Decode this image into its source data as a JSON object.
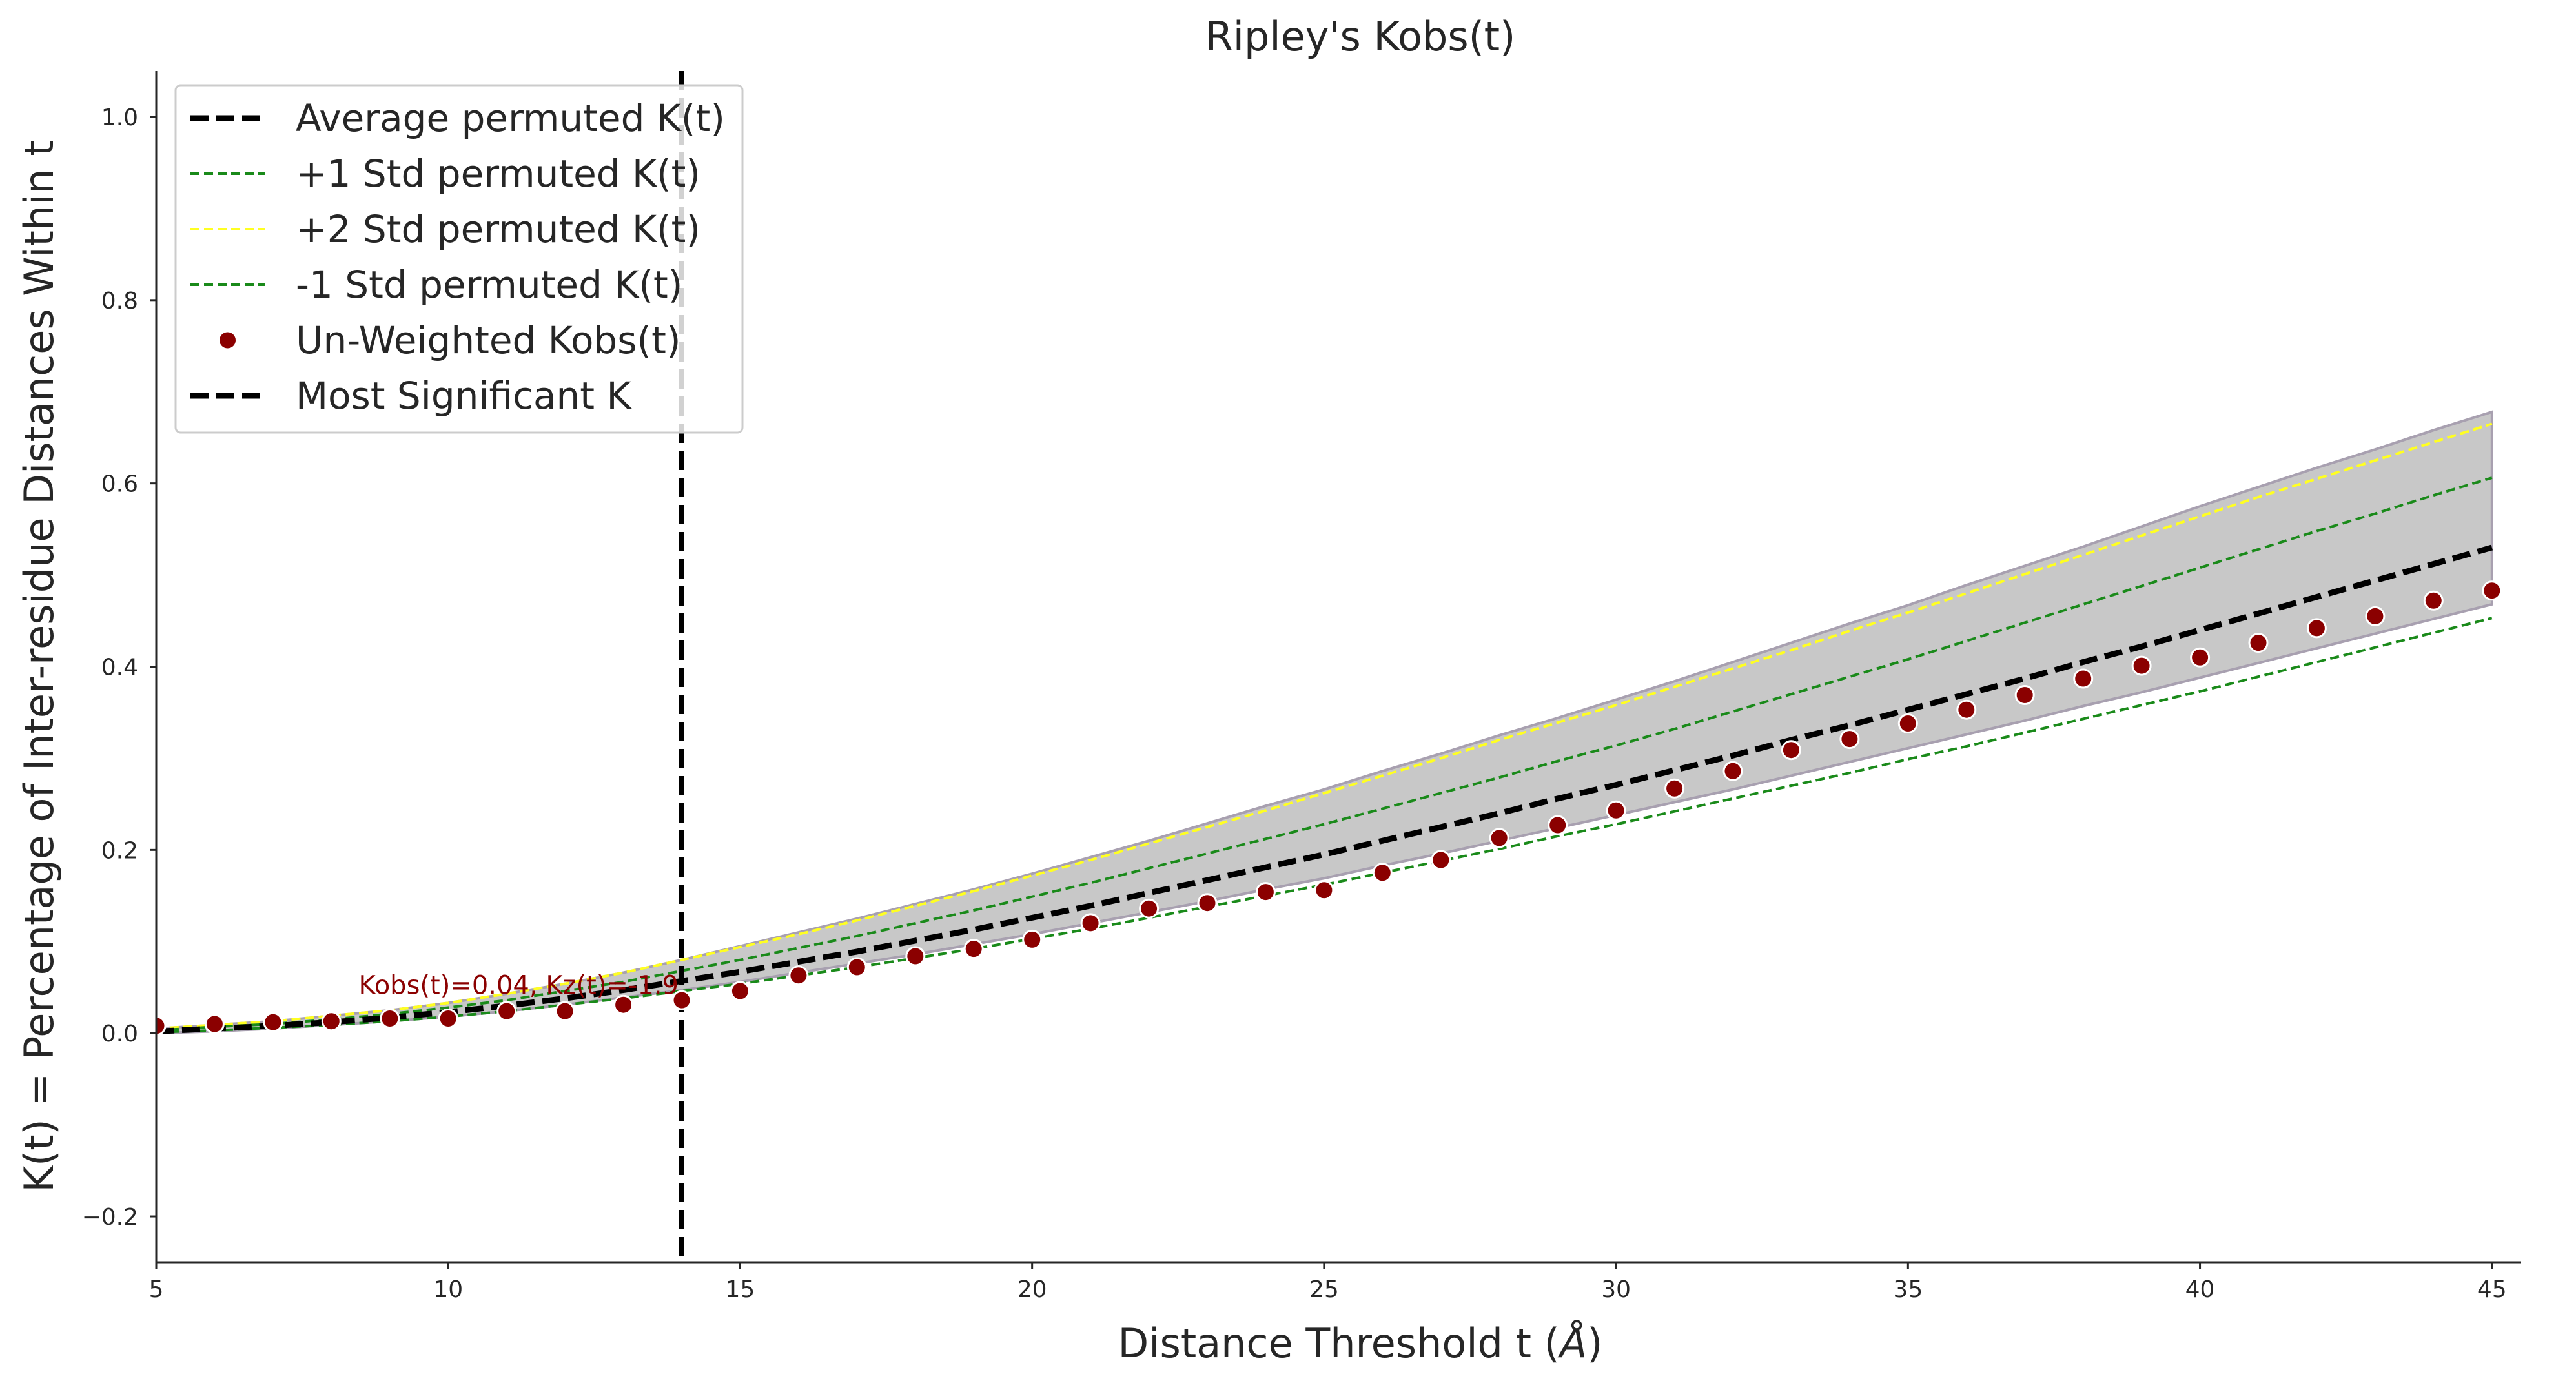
{
  "chart_data": {
    "type": "line",
    "title": "Ripley's Kobs(t)",
    "xlabel": "Distance Threshold t (",
    "xlabel_symbol": "Å",
    "xlabel_end": ")",
    "ylabel": "K(t) = Percentage of Inter-residue Distances Within t",
    "xlim": [
      5,
      45.5
    ],
    "ylim": [
      -0.25,
      1.05
    ],
    "xticks": [
      5,
      10,
      15,
      20,
      25,
      30,
      35,
      40,
      45
    ],
    "yticks": [
      -0.2,
      0.0,
      0.2,
      0.4,
      0.6,
      0.8,
      1.0
    ],
    "xtick_labels": [
      "5",
      "10",
      "15",
      "20",
      "25",
      "30",
      "35",
      "40",
      "45"
    ],
    "ytick_labels": [
      "−0.2",
      "0.0",
      "0.2",
      "0.4",
      "0.6",
      "0.8",
      "1.0"
    ],
    "grid": false,
    "legend_position": "upper-left",
    "x": [
      5,
      6,
      7,
      8,
      9,
      10,
      11,
      12,
      13,
      14,
      15,
      16,
      17,
      18,
      19,
      20,
      21,
      22,
      23,
      24,
      25,
      26,
      27,
      28,
      29,
      30,
      31,
      32,
      33,
      34,
      35,
      36,
      37,
      38,
      39,
      40,
      41,
      42,
      43,
      44,
      45
    ],
    "band": {
      "upper": [
        0.005,
        0.009,
        0.013,
        0.019,
        0.025,
        0.033,
        0.043,
        0.054,
        0.066,
        0.08,
        0.095,
        0.11,
        0.125,
        0.141,
        0.157,
        0.174,
        0.192,
        0.21,
        0.229,
        0.248,
        0.266,
        0.286,
        0.305,
        0.325,
        0.344,
        0.364,
        0.384,
        0.405,
        0.426,
        0.447,
        0.467,
        0.489,
        0.51,
        0.531,
        0.553,
        0.575,
        0.596,
        0.617,
        0.637,
        0.658,
        0.678
      ],
      "lower": [
        0.0,
        0.002,
        0.005,
        0.009,
        0.013,
        0.018,
        0.024,
        0.031,
        0.039,
        0.047,
        0.056,
        0.066,
        0.076,
        0.086,
        0.097,
        0.108,
        0.12,
        0.132,
        0.144,
        0.157,
        0.169,
        0.183,
        0.196,
        0.21,
        0.224,
        0.238,
        0.252,
        0.266,
        0.281,
        0.296,
        0.311,
        0.326,
        0.341,
        0.357,
        0.372,
        0.388,
        0.404,
        0.42,
        0.436,
        0.452,
        0.468
      ]
    },
    "series": [
      {
        "name": "Average permuted K(t)",
        "color": "#000000",
        "style": "dashed-thick",
        "values": [
          0.002,
          0.005,
          0.008,
          0.012,
          0.017,
          0.023,
          0.03,
          0.038,
          0.047,
          0.057,
          0.067,
          0.078,
          0.089,
          0.101,
          0.113,
          0.126,
          0.139,
          0.153,
          0.167,
          0.181,
          0.195,
          0.21,
          0.225,
          0.24,
          0.256,
          0.271,
          0.287,
          0.303,
          0.32,
          0.336,
          0.353,
          0.37,
          0.387,
          0.405,
          0.422,
          0.44,
          0.458,
          0.476,
          0.494,
          0.512,
          0.53
        ]
      },
      {
        "name": "+1 Std permuted K(t)",
        "color": "#1a8a1a",
        "style": "dashed-thin",
        "values": [
          0.003,
          0.007,
          0.01,
          0.015,
          0.021,
          0.028,
          0.036,
          0.046,
          0.056,
          0.068,
          0.08,
          0.093,
          0.106,
          0.12,
          0.134,
          0.149,
          0.164,
          0.18,
          0.196,
          0.212,
          0.228,
          0.245,
          0.262,
          0.279,
          0.297,
          0.314,
          0.332,
          0.351,
          0.37,
          0.389,
          0.408,
          0.428,
          0.448,
          0.468,
          0.488,
          0.508,
          0.528,
          0.548,
          0.567,
          0.587,
          0.606
        ]
      },
      {
        "name": "+2 Std permuted K(t)",
        "color": "#ffff22",
        "style": "dashed-thin",
        "values": [
          0.005,
          0.009,
          0.013,
          0.019,
          0.025,
          0.033,
          0.043,
          0.054,
          0.066,
          0.08,
          0.094,
          0.108,
          0.123,
          0.139,
          0.155,
          0.172,
          0.189,
          0.207,
          0.225,
          0.243,
          0.262,
          0.281,
          0.3,
          0.32,
          0.339,
          0.358,
          0.378,
          0.398,
          0.418,
          0.439,
          0.459,
          0.48,
          0.501,
          0.522,
          0.543,
          0.564,
          0.585,
          0.605,
          0.625,
          0.645,
          0.665
        ]
      },
      {
        "name": "-1 Std permuted K(t)",
        "color": "#1a8a1a",
        "style": "dashed-thin",
        "values": [
          0.001,
          0.003,
          0.006,
          0.009,
          0.013,
          0.018,
          0.024,
          0.031,
          0.038,
          0.046,
          0.054,
          0.063,
          0.072,
          0.082,
          0.092,
          0.103,
          0.114,
          0.126,
          0.138,
          0.15,
          0.162,
          0.175,
          0.188,
          0.201,
          0.215,
          0.228,
          0.242,
          0.256,
          0.27,
          0.284,
          0.299,
          0.313,
          0.328,
          0.343,
          0.358,
          0.373,
          0.389,
          0.405,
          0.421,
          0.437,
          0.453
        ]
      }
    ],
    "scatter": {
      "name": "Un-Weighted Kobs(t)",
      "color": "#8b0000",
      "values": [
        0.008,
        0.01,
        0.012,
        0.013,
        0.016,
        0.016,
        0.024,
        0.024,
        0.031,
        0.036,
        0.046,
        0.063,
        0.072,
        0.084,
        0.092,
        0.102,
        0.12,
        0.136,
        0.142,
        0.154,
        0.156,
        0.175,
        0.189,
        0.213,
        0.227,
        0.243,
        0.267,
        0.286,
        0.309,
        0.321,
        0.338,
        0.353,
        0.369,
        0.387,
        0.401,
        0.41,
        0.426,
        0.442,
        0.455,
        0.472,
        0.483
      ]
    },
    "vline": {
      "name": "Most Significant K",
      "x": 14,
      "color": "#000000"
    },
    "annotation": {
      "text": "Kobs(t)=0.04, Kz(t)=-1.9",
      "x": 14,
      "y": 0.04
    }
  }
}
